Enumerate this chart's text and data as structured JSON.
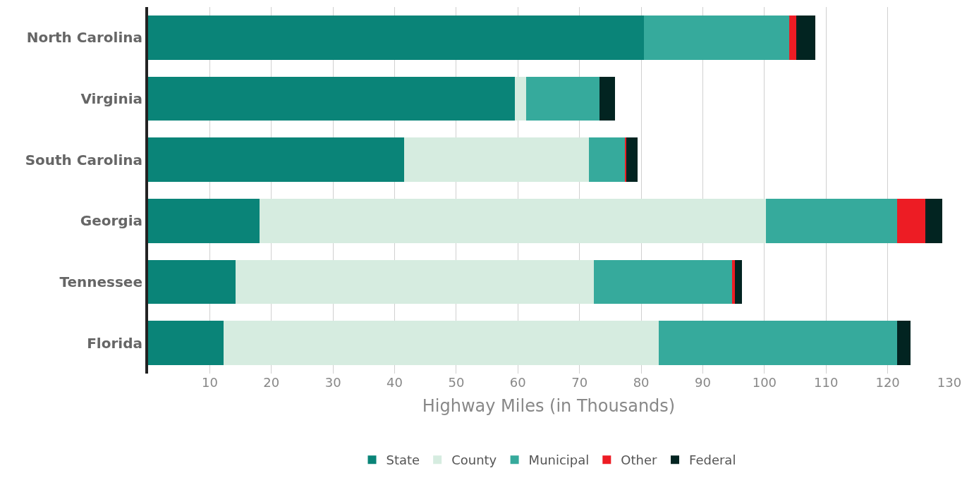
{
  "chart_data": {
    "type": "bar",
    "orientation": "horizontal",
    "stacked": true,
    "xlabel": "Highway Miles (in Thousands)",
    "categories": [
      "North Carolina",
      "Virginia",
      "South Carolina",
      "Georgia",
      "Tennessee",
      "Florida"
    ],
    "series": [
      {
        "name": "State",
        "color": "#0a8478",
        "values": [
          80.4,
          59.5,
          41.5,
          18.1,
          14.2,
          12.3
        ]
      },
      {
        "name": "County",
        "color": "#d6ece0",
        "values": [
          0,
          1.8,
          30.0,
          82.1,
          58.1,
          70.6
        ]
      },
      {
        "name": "Municipal",
        "color": "#36aa9c",
        "values": [
          23.6,
          11.9,
          5.9,
          21.3,
          22.4,
          38.6
        ]
      },
      {
        "name": "Other",
        "color": "#ed1c24",
        "values": [
          1.2,
          0,
          0.2,
          4.6,
          0.5,
          0
        ]
      },
      {
        "name": "Federal",
        "color": "#022421",
        "values": [
          3.0,
          2.5,
          1.8,
          2.8,
          1.1,
          2.2
        ]
      }
    ],
    "xlim": [
      0,
      130
    ],
    "xticks": [
      10,
      20,
      30,
      40,
      50,
      60,
      70,
      80,
      90,
      100,
      110,
      120,
      130
    ],
    "grid": "x",
    "legend": "bottom"
  }
}
